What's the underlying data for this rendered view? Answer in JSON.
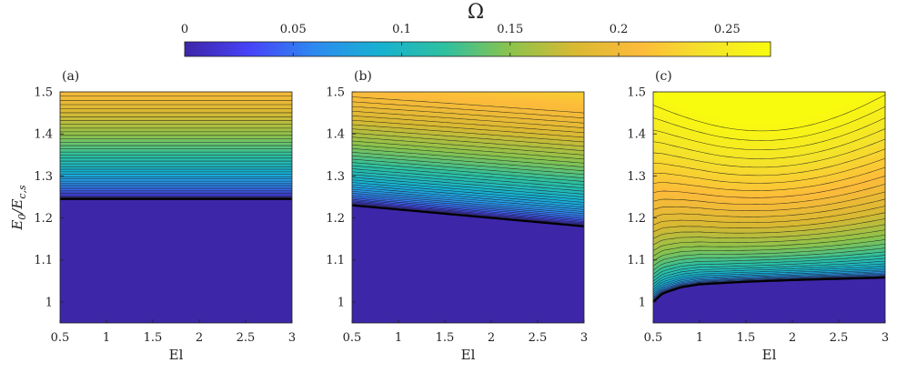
{
  "colorbar": {
    "title": "Ω",
    "range": [
      0,
      0.27
    ],
    "ticks": [
      0,
      0.05,
      0.1,
      0.15,
      0.2,
      0.25
    ],
    "tick_labels": [
      "0",
      "0.05",
      "0.1",
      "0.15",
      "0.2",
      "0.25"
    ],
    "colormap": [
      "#3e26a8",
      "#4743f8",
      "#2d8af0",
      "#17b1d1",
      "#2ec09f",
      "#8cc34c",
      "#d9b932",
      "#fdbb3a",
      "#f4e32a",
      "#f9fb0e"
    ],
    "zero_color": "#3e26a8"
  },
  "chart_data": [
    {
      "type": "contour",
      "panel_label": "(a)",
      "xlabel": "El",
      "ylabel": "E_0/E_{c,s}",
      "ylabel_main": "E",
      "ylabel_main_sub": "0",
      "ylabel_slash": "/",
      "ylabel_den": "E",
      "ylabel_den_sub": "c,s",
      "xlim": [
        0.5,
        3
      ],
      "ylim": [
        0.95,
        1.5
      ],
      "xticks": [
        0.5,
        1,
        1.5,
        2,
        2.5,
        3
      ],
      "xtick_labels": [
        "0.5",
        "1",
        "1.5",
        "2",
        "2.5",
        "3"
      ],
      "yticks": [
        1,
        1.1,
        1.2,
        1.3,
        1.4,
        1.5
      ],
      "ytick_labels": [
        "1",
        "1.1",
        "1.2",
        "1.3",
        "1.4",
        "1.5"
      ],
      "threshold": {
        "El": [
          0.5,
          3
        ],
        "E0": [
          1.245,
          1.245
        ]
      },
      "omega_top": 0.205,
      "omega_top_right": 0.205,
      "omega_top_curv": 0,
      "gamma": 0.6,
      "zlabel": "Ω"
    },
    {
      "type": "contour",
      "panel_label": "(b)",
      "xlabel": "El",
      "ylabel": "",
      "xlim": [
        0.5,
        3
      ],
      "ylim": [
        0.95,
        1.5
      ],
      "xticks": [
        0.5,
        1,
        1.5,
        2,
        2.5,
        3
      ],
      "xtick_labels": [
        "0.5",
        "1",
        "1.5",
        "2",
        "2.5",
        "3"
      ],
      "yticks": [
        1,
        1.1,
        1.2,
        1.3,
        1.4,
        1.5
      ],
      "ytick_labels": [
        "1",
        "1.1",
        "1.2",
        "1.3",
        "1.4",
        "1.5"
      ],
      "threshold": {
        "El": [
          0.5,
          3
        ],
        "E0": [
          1.23,
          1.18
        ]
      },
      "omega_top": 0.21,
      "omega_top_right": 0.225,
      "omega_top_curv": 0,
      "gamma": 0.55,
      "zlabel": "Ω"
    },
    {
      "type": "contour",
      "panel_label": "(c)",
      "xlabel": "El",
      "ylabel": "",
      "xlim": [
        0.5,
        3
      ],
      "ylim": [
        0.95,
        1.5
      ],
      "xticks": [
        0.5,
        1,
        1.5,
        2,
        2.5,
        3
      ],
      "xtick_labels": [
        "0.5",
        "1",
        "1.5",
        "2",
        "2.5",
        "3"
      ],
      "yticks": [
        1,
        1.1,
        1.2,
        1.3,
        1.4,
        1.5
      ],
      "ytick_labels": [
        "1",
        "1.1",
        "1.2",
        "1.3",
        "1.4",
        "1.5"
      ],
      "threshold": {
        "El": [
          0.5,
          0.6,
          0.8,
          1,
          1.5,
          2,
          2.5,
          3
        ],
        "E0": [
          1.0,
          1.02,
          1.035,
          1.042,
          1.048,
          1.052,
          1.055,
          1.058
        ]
      },
      "omega_top": 0.27,
      "omega_top_right": 0.265,
      "omega_top_curv": 0.02,
      "gamma": 0.38,
      "zlabel": "Ω"
    }
  ]
}
